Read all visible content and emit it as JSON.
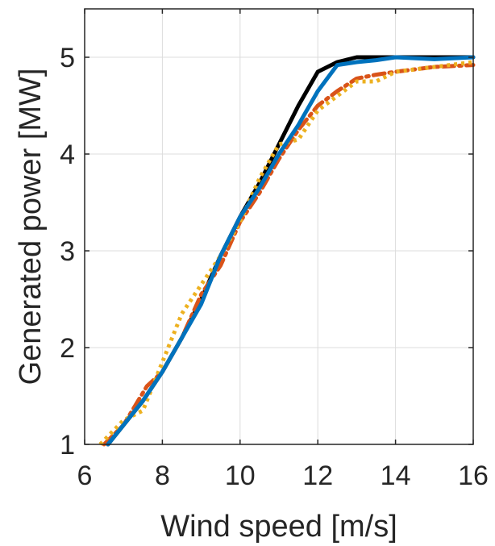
{
  "chart_data": {
    "type": "line",
    "title": "",
    "xlabel": "Wind speed [m/s]",
    "ylabel": "Generated power [MW]",
    "xlim": [
      6,
      16
    ],
    "ylim": [
      1,
      5.5
    ],
    "xticks": [
      "6",
      "8",
      "10",
      "12",
      "14",
      "16"
    ],
    "yticks": [
      "1",
      "2",
      "3",
      "4",
      "5"
    ],
    "grid": true,
    "legend": "none",
    "series": [
      {
        "color": "#000000",
        "style": "solid",
        "x": [
          6.6,
          7.0,
          7.5,
          8.0,
          8.5,
          9.0,
          9.5,
          10.0,
          10.5,
          11.0,
          11.5,
          12.0,
          12.5,
          13.0,
          13.5,
          14.0,
          15.0,
          16.0
        ],
        "y": [
          1.0,
          1.2,
          1.45,
          1.75,
          2.1,
          2.5,
          2.95,
          3.35,
          3.7,
          4.1,
          4.5,
          4.85,
          4.95,
          5.0,
          5.0,
          5.0,
          5.0,
          5.0
        ]
      },
      {
        "color": "#D95319",
        "style": "dashdot",
        "x": [
          6.5,
          7.0,
          7.3,
          7.6,
          8.0,
          8.5,
          9.0,
          9.5,
          10.0,
          10.5,
          11.0,
          11.5,
          12.0,
          12.5,
          13.0,
          13.5,
          14.0,
          15.0,
          16.0
        ],
        "y": [
          1.0,
          1.2,
          1.4,
          1.6,
          1.75,
          2.1,
          2.55,
          2.85,
          3.3,
          3.6,
          3.95,
          4.25,
          4.5,
          4.65,
          4.78,
          4.82,
          4.85,
          4.9,
          4.92
        ]
      },
      {
        "color": "#EDB120",
        "style": "dotted",
        "x": [
          6.4,
          7.0,
          7.5,
          8.0,
          8.5,
          9.0,
          9.5,
          10.0,
          10.5,
          11.0,
          11.5,
          12.0,
          12.5,
          13.0,
          13.5,
          14.0,
          15.0,
          16.0
        ],
        "y": [
          1.0,
          1.25,
          1.35,
          1.85,
          2.35,
          2.65,
          2.95,
          3.3,
          3.75,
          4.1,
          4.15,
          4.45,
          4.6,
          4.75,
          4.75,
          4.85,
          4.9,
          4.95
        ]
      },
      {
        "color": "#0072BD",
        "style": "solid",
        "x": [
          6.6,
          7.0,
          7.5,
          8.0,
          8.5,
          9.0,
          9.5,
          10.0,
          10.5,
          11.0,
          11.5,
          12.0,
          12.5,
          13.0,
          13.5,
          14.0,
          15.0,
          16.0
        ],
        "y": [
          1.0,
          1.2,
          1.45,
          1.75,
          2.1,
          2.45,
          2.95,
          3.35,
          3.65,
          4.0,
          4.3,
          4.65,
          4.92,
          4.95,
          4.97,
          5.0,
          4.98,
          5.0
        ]
      }
    ]
  }
}
